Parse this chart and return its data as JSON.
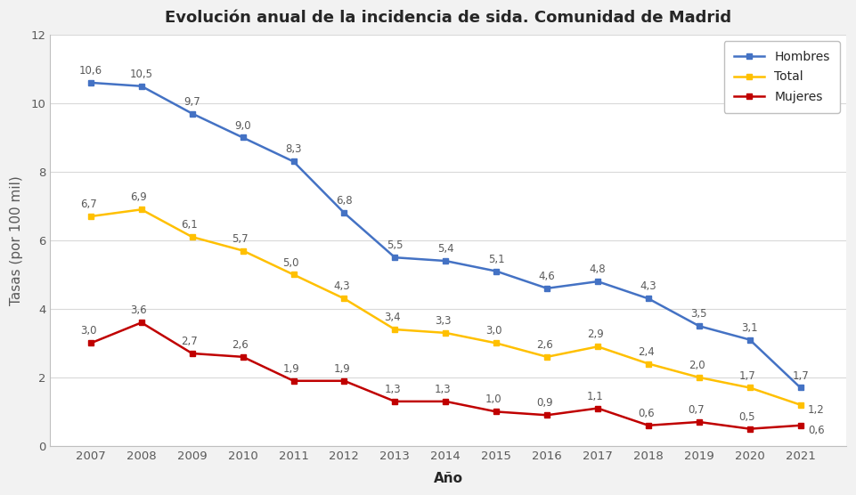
{
  "title": "Evolución anual de la incidencia de sida. Comunidad de Madrid",
  "xlabel": "Año",
  "ylabel": "Tasas (por 100 mil)",
  "years": [
    2007,
    2008,
    2009,
    2010,
    2011,
    2012,
    2013,
    2014,
    2015,
    2016,
    2017,
    2018,
    2019,
    2020,
    2021
  ],
  "hombres": [
    10.6,
    10.5,
    9.7,
    9.0,
    8.3,
    6.8,
    5.5,
    5.4,
    5.1,
    4.6,
    4.8,
    4.3,
    3.5,
    3.1,
    1.7
  ],
  "total": [
    6.7,
    6.9,
    6.1,
    5.7,
    5.0,
    4.3,
    3.4,
    3.3,
    3.0,
    2.6,
    2.9,
    2.4,
    2.0,
    1.7,
    1.2
  ],
  "mujeres": [
    3.0,
    3.6,
    2.7,
    2.6,
    1.9,
    1.9,
    1.3,
    1.3,
    1.0,
    0.9,
    1.1,
    0.6,
    0.7,
    0.5,
    0.6
  ],
  "hombres_color": "#4472C4",
  "total_color": "#FFC000",
  "mujeres_color": "#C00000",
  "bg_color": "#F2F2F2",
  "plot_bg_color": "#FFFFFF",
  "grid_color": "#D9D9D9",
  "ylim": [
    0,
    12
  ],
  "yticks": [
    0,
    2,
    4,
    6,
    8,
    10,
    12
  ],
  "title_fontsize": 13,
  "label_fontsize": 11,
  "tick_fontsize": 9.5,
  "annotation_fontsize": 8.5,
  "legend_labels": [
    "Hombres",
    "Total",
    "Mujeres"
  ],
  "line_width": 1.8,
  "marker": "s",
  "marker_size": 5
}
